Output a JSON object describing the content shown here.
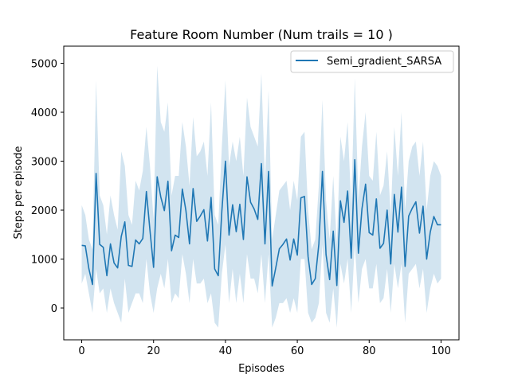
{
  "chart_data": {
    "type": "line",
    "title": "Feature Room Number (Num trails = 10 )",
    "xlabel": "Episodes",
    "ylabel": "Steps per episode",
    "xlim": [
      -5,
      105
    ],
    "ylim": [
      -650,
      5350
    ],
    "xticks": [
      0,
      20,
      40,
      60,
      80,
      100
    ],
    "yticks": [
      0,
      1000,
      2000,
      3000,
      4000,
      5000
    ],
    "grid": false,
    "legend": "top-right",
    "series": [
      {
        "name": "Semi_gradient_SARSA",
        "color": "#1f77b4",
        "band_color": "#1f77b4",
        "x": [
          0,
          1,
          2,
          3,
          4,
          5,
          6,
          7,
          8,
          9,
          10,
          11,
          12,
          13,
          14,
          15,
          16,
          17,
          18,
          19,
          20,
          21,
          22,
          23,
          24,
          25,
          26,
          27,
          28,
          29,
          30,
          31,
          32,
          33,
          34,
          35,
          36,
          37,
          38,
          39,
          40,
          41,
          42,
          43,
          44,
          45,
          46,
          47,
          48,
          49,
          50,
          51,
          52,
          53,
          54,
          55,
          56,
          57,
          58,
          59,
          60,
          61,
          62,
          63,
          64,
          65,
          66,
          67,
          68,
          69,
          70,
          71,
          72,
          73,
          74,
          75,
          76,
          77,
          78,
          79,
          80,
          81,
          82,
          83,
          84,
          85,
          86,
          87,
          88,
          89,
          90,
          91,
          92,
          93,
          94,
          95,
          96,
          97,
          98,
          99,
          100
        ],
        "y": [
          1280,
          1270,
          800,
          480,
          2750,
          1300,
          1240,
          660,
          1310,
          920,
          820,
          1460,
          1760,
          870,
          850,
          1390,
          1310,
          1420,
          2380,
          1580,
          830,
          2680,
          2270,
          1990,
          2590,
          1170,
          1490,
          1440,
          2430,
          1990,
          1310,
          2440,
          1770,
          1880,
          2010,
          1370,
          2260,
          800,
          660,
          1980,
          3000,
          1490,
          2110,
          1560,
          2120,
          1400,
          2680,
          2160,
          2020,
          1810,
          2950,
          1310,
          2790,
          450,
          820,
          1210,
          1300,
          1410,
          980,
          1410,
          1080,
          2250,
          2280,
          1050,
          480,
          600,
          1310,
          2790,
          1090,
          580,
          1570,
          460,
          2190,
          1750,
          2390,
          1020,
          3030,
          1120,
          2030,
          2530,
          1540,
          1490,
          2230,
          1220,
          1320,
          2000,
          900,
          2320,
          1550,
          2470,
          850,
          1880,
          2040,
          2170,
          1530,
          2080,
          1000,
          1550,
          1870,
          1700,
          1700
        ],
        "upper": [
          2100,
          1900,
          1400,
          1200,
          4650,
          2300,
          2100,
          1500,
          2300,
          1900,
          1600,
          3200,
          2900,
          1900,
          1700,
          2600,
          2400,
          2800,
          3700,
          2900,
          1800,
          4950,
          3800,
          3600,
          4200,
          2300,
          2700,
          2700,
          3800,
          3300,
          2500,
          3900,
          3100,
          3200,
          3400,
          2700,
          4200,
          1900,
          1700,
          3300,
          4650,
          2900,
          3400,
          3000,
          3500,
          2700,
          4300,
          3700,
          3500,
          3300,
          4800,
          2600,
          4450,
          1400,
          1900,
          2400,
          2500,
          2600,
          2000,
          2600,
          2200,
          3500,
          3600,
          2000,
          1200,
          1400,
          2500,
          4250,
          2200,
          1400,
          2700,
          1300,
          3500,
          3000,
          3800,
          2100,
          4700,
          2200,
          3300,
          4000,
          2700,
          2600,
          3600,
          2300,
          2500,
          3200,
          1900,
          3700,
          2700,
          4000,
          2000,
          3000,
          3300,
          3400,
          2700,
          3400,
          2000,
          2700,
          3000,
          2900,
          2700
        ],
        "lower": [
          500,
          700,
          300,
          -100,
          800,
          300,
          400,
          -100,
          400,
          100,
          -100,
          -300,
          600,
          -100,
          100,
          300,
          300,
          100,
          1000,
          300,
          -100,
          400,
          700,
          400,
          1000,
          100,
          300,
          200,
          1100,
          700,
          100,
          1000,
          500,
          500,
          600,
          100,
          300,
          -300,
          -400,
          700,
          1300,
          100,
          800,
          100,
          700,
          100,
          1100,
          600,
          600,
          300,
          1100,
          100,
          1100,
          -400,
          -200,
          100,
          100,
          200,
          -100,
          200,
          -100,
          1000,
          1000,
          -100,
          -300,
          -200,
          100,
          1300,
          -100,
          -300,
          400,
          -400,
          900,
          500,
          1000,
          -100,
          1300,
          100,
          800,
          1000,
          400,
          400,
          900,
          100,
          200,
          800,
          -100,
          900,
          400,
          900,
          -300,
          700,
          800,
          900,
          400,
          800,
          -100,
          400,
          700,
          500,
          600
        ]
      }
    ]
  }
}
